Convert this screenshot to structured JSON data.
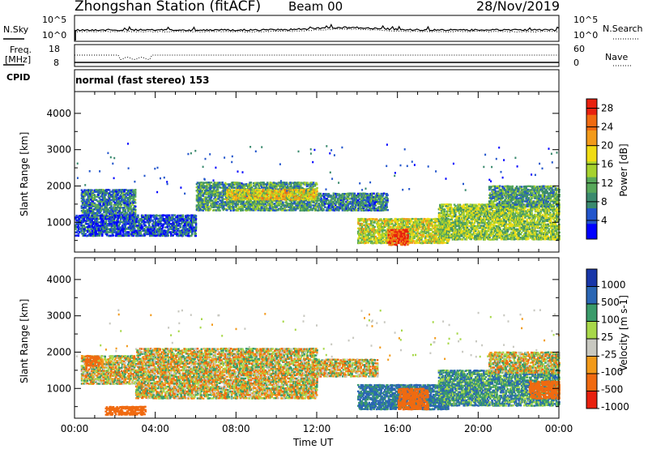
{
  "header": {
    "station": "Zhongshan Station (fitACF)",
    "beam": "Beam 00",
    "date": "28/Nov/2019"
  },
  "top_panels": {
    "nsky_label": "N.Sky",
    "nsky_ticks": [
      "10^5",
      "10^0"
    ],
    "nsearch_label": "N.Search",
    "nsearch_ticks": [
      "10^5",
      "10^0"
    ],
    "freq_label_1": "Freq.",
    "freq_label_2": "[MHz]",
    "freq_ticks": [
      "18",
      "8"
    ],
    "nave_label": "Nave",
    "nave_ticks": [
      "60",
      "0"
    ],
    "cpid_label": "CPID",
    "cpid_text": "normal (fast stereo) 153"
  },
  "colors": {
    "power": [
      "#0000ff",
      "#2255cc",
      "#3a8a6e",
      "#57a85a",
      "#a6d22e",
      "#f0dc14",
      "#f29a1a",
      "#f06a10",
      "#e8200e"
    ],
    "velocity": [
      "#e8200e",
      "#f06a10",
      "#f29a1a",
      "#c8c8c0",
      "#a8d84a",
      "#3a9b6a",
      "#2a66b4",
      "#1836a8"
    ]
  },
  "chart_data": [
    {
      "type": "heatmap",
      "title": "Power",
      "xlabel": "Time UT",
      "ylabel": "Slant Range [km]",
      "x_ticks": [
        "00:00",
        "04:00",
        "08:00",
        "12:00",
        "16:00",
        "20:00",
        "00:00"
      ],
      "xlim_hours": [
        0,
        24
      ],
      "ylim": [
        180,
        4600
      ],
      "y_ticks": [
        1000,
        2000,
        3000,
        4000
      ],
      "colorbar_label": "Power [dB]",
      "colorbar_ticks": [
        4,
        8,
        12,
        16,
        20,
        24,
        28
      ],
      "colorbar_range": [
        0,
        30
      ],
      "echo_regions": [
        {
          "t": [
            0.3,
            3.0
          ],
          "range": [
            1100,
            1900
          ],
          "value": 8
        },
        {
          "t": [
            0.0,
            6.0
          ],
          "range": [
            600,
            1200
          ],
          "value": 5
        },
        {
          "t": [
            6.0,
            12.0
          ],
          "range": [
            1300,
            2100
          ],
          "value": 10
        },
        {
          "t": [
            7.5,
            12.0
          ],
          "range": [
            1600,
            1900
          ],
          "value": 18
        },
        {
          "t": [
            12.0,
            15.5
          ],
          "range": [
            1300,
            1800
          ],
          "value": 8
        },
        {
          "t": [
            14.0,
            18.5
          ],
          "range": [
            400,
            1100
          ],
          "value": 16
        },
        {
          "t": [
            15.5,
            16.5
          ],
          "range": [
            350,
            800
          ],
          "value": 27
        },
        {
          "t": [
            18.0,
            24.0
          ],
          "range": [
            500,
            1500
          ],
          "value": 14
        },
        {
          "t": [
            20.5,
            24.0
          ],
          "range": [
            1400,
            2000
          ],
          "value": 10
        }
      ]
    },
    {
      "type": "heatmap",
      "title": "Velocity",
      "xlabel": "Time UT",
      "ylabel": "Slant Range [km]",
      "x_ticks": [
        "00:00",
        "04:00",
        "08:00",
        "12:00",
        "16:00",
        "20:00",
        "00:00"
      ],
      "xlim_hours": [
        0,
        24
      ],
      "ylim": [
        180,
        4600
      ],
      "y_ticks": [
        1000,
        2000,
        3000,
        4000
      ],
      "colorbar_label": "Velocity [m s-1]",
      "colorbar_ticks": [
        "1000",
        "500",
        "100",
        "25",
        "-25",
        "-100",
        "-500",
        "-1000"
      ],
      "echo_regions": [
        {
          "t": [
            0.3,
            3.0
          ],
          "range": [
            1100,
            1900
          ],
          "value": 0
        },
        {
          "t": [
            0.5,
            1.2
          ],
          "range": [
            1600,
            1900
          ],
          "value": -300
        },
        {
          "t": [
            1.5,
            3.5
          ],
          "range": [
            250,
            500
          ],
          "value": -300
        },
        {
          "t": [
            3.0,
            12.0
          ],
          "range": [
            700,
            2100
          ],
          "value": 0
        },
        {
          "t": [
            12.0,
            15.0
          ],
          "range": [
            1300,
            1800
          ],
          "value": 0
        },
        {
          "t": [
            14.0,
            18.5
          ],
          "range": [
            400,
            1100
          ],
          "value": 300
        },
        {
          "t": [
            16.0,
            17.5
          ],
          "range": [
            400,
            1000
          ],
          "value": -300
        },
        {
          "t": [
            18.0,
            24.0
          ],
          "range": [
            500,
            1500
          ],
          "value": 200
        },
        {
          "t": [
            22.5,
            24.0
          ],
          "range": [
            700,
            1200
          ],
          "value": -300
        },
        {
          "t": [
            20.5,
            24.0
          ],
          "range": [
            1400,
            2000
          ],
          "value": 0
        }
      ]
    }
  ]
}
